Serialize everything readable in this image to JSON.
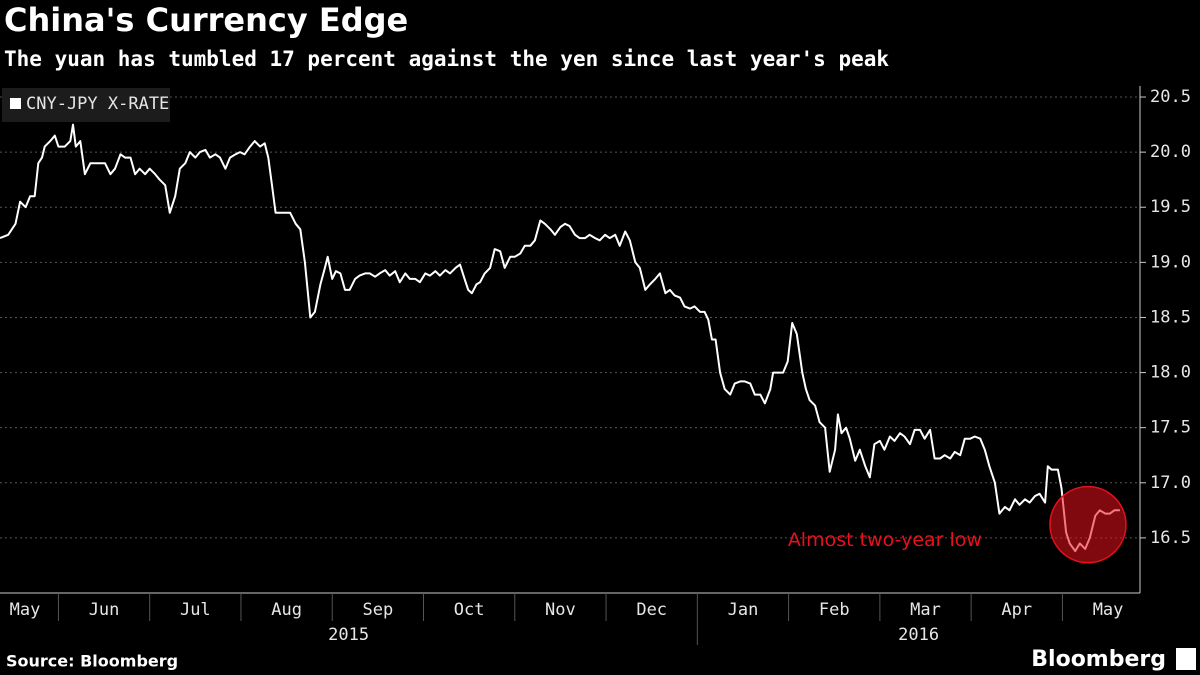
{
  "chart_data": {
    "type": "line",
    "title": "China's Currency Edge",
    "subtitle": "The yuan has tumbled 17 percent against the yen since last year's peak",
    "source": "Source: Bloomberg",
    "brand": "Bloomberg",
    "x": [
      0.36,
      0.45,
      0.53,
      0.58,
      0.64,
      0.69,
      0.74,
      0.78,
      0.82,
      0.85,
      0.91,
      0.96,
      1.0,
      1.07,
      1.13,
      1.16,
      1.19,
      1.24,
      1.29,
      1.35,
      1.46,
      1.51,
      1.57,
      1.62,
      1.68,
      1.73,
      1.79,
      1.84,
      1.89,
      1.95,
      2.0,
      2.06,
      2.11,
      2.17,
      2.22,
      2.28,
      2.33,
      2.39,
      2.44,
      2.5,
      2.55,
      2.61,
      2.66,
      2.72,
      2.77,
      2.83,
      2.88,
      2.94,
      2.99,
      3.04,
      3.1,
      3.15,
      3.21,
      3.26,
      3.3,
      3.34,
      3.38,
      3.46,
      3.54,
      3.6,
      3.65,
      3.7,
      3.76,
      3.81,
      3.87,
      3.92,
      3.95,
      4.0,
      4.04,
      4.09,
      4.14,
      4.19,
      4.25,
      4.3,
      4.36,
      4.41,
      4.47,
      4.52,
      4.58,
      4.63,
      4.69,
      4.74,
      4.8,
      4.85,
      4.91,
      4.96,
      5.02,
      5.07,
      5.13,
      5.18,
      5.24,
      5.29,
      5.35,
      5.4,
      5.45,
      5.49,
      5.53,
      5.58,
      5.62,
      5.67,
      5.73,
      5.78,
      5.84,
      5.89,
      5.95,
      6.0,
      6.06,
      6.11,
      6.17,
      6.22,
      6.28,
      6.33,
      6.39,
      6.44,
      6.5,
      6.55,
      6.6,
      6.66,
      6.71,
      6.77,
      6.82,
      6.88,
      6.93,
      6.99,
      7.04,
      7.1,
      7.15,
      7.21,
      7.26,
      7.32,
      7.37,
      7.43,
      7.48,
      7.54,
      7.59,
      7.65,
      7.7,
      7.75,
      7.81,
      7.86,
      7.92,
      7.97,
      8.03,
      8.08,
      8.12,
      8.16,
      8.2,
      8.25,
      8.3,
      8.36,
      8.41,
      8.47,
      8.52,
      8.58,
      8.63,
      8.69,
      8.74,
      8.8,
      8.83,
      8.88,
      8.94,
      8.99,
      9.04,
      9.09,
      9.15,
      9.19,
      9.23,
      9.29,
      9.34,
      9.4,
      9.45,
      9.51,
      9.54,
      9.58,
      9.63,
      9.67,
      9.73,
      9.78,
      9.84,
      9.89,
      9.94,
      10.0,
      10.05,
      10.11,
      10.16,
      10.22,
      10.27,
      10.33,
      10.38,
      10.44,
      10.49,
      10.55,
      10.6,
      10.66,
      10.71,
      10.77,
      10.82,
      10.88,
      10.93,
      10.99,
      11.04,
      11.1,
      11.15,
      11.2,
      11.26,
      11.31,
      11.37,
      11.42,
      11.48,
      11.53,
      11.59,
      11.64,
      11.7,
      11.75,
      11.81,
      11.84,
      11.88,
      11.95,
      11.99,
      12.04,
      12.08,
      12.14,
      12.19,
      12.25,
      12.3,
      12.36,
      12.41,
      12.47,
      12.52,
      12.57,
      12.63
    ],
    "series": [
      {
        "name": "CNY-JPY X-RATE",
        "color": "#ffffff",
        "values": [
          19.22,
          19.25,
          19.35,
          19.55,
          19.5,
          19.6,
          19.6,
          19.9,
          19.95,
          20.05,
          20.1,
          20.15,
          20.05,
          20.05,
          20.1,
          20.25,
          20.05,
          20.1,
          19.8,
          19.9,
          19.9,
          19.9,
          19.8,
          19.85,
          19.98,
          19.95,
          19.95,
          19.8,
          19.85,
          19.8,
          19.85,
          19.8,
          19.75,
          19.7,
          19.45,
          19.6,
          19.85,
          19.9,
          20.0,
          19.95,
          20.0,
          20.02,
          19.95,
          19.98,
          19.95,
          19.85,
          19.95,
          19.98,
          20.0,
          19.98,
          20.05,
          20.1,
          20.05,
          20.08,
          19.95,
          19.7,
          19.45,
          19.45,
          19.45,
          19.35,
          19.3,
          19.0,
          18.5,
          18.55,
          18.8,
          18.95,
          19.05,
          18.85,
          18.92,
          18.9,
          18.75,
          18.75,
          18.85,
          18.88,
          18.9,
          18.9,
          18.87,
          18.9,
          18.93,
          18.88,
          18.92,
          18.82,
          18.9,
          18.85,
          18.85,
          18.82,
          18.9,
          18.88,
          18.92,
          18.88,
          18.93,
          18.9,
          18.95,
          18.98,
          18.85,
          18.75,
          18.72,
          18.8,
          18.82,
          18.9,
          18.95,
          19.12,
          19.1,
          18.95,
          19.05,
          19.05,
          19.08,
          19.15,
          19.15,
          19.2,
          19.38,
          19.35,
          19.3,
          19.25,
          19.32,
          19.35,
          19.33,
          19.25,
          19.22,
          19.22,
          19.25,
          19.22,
          19.2,
          19.25,
          19.22,
          19.25,
          19.15,
          19.28,
          19.2,
          19.0,
          18.95,
          18.75,
          18.8,
          18.85,
          18.9,
          18.72,
          18.75,
          18.7,
          18.68,
          18.6,
          18.58,
          18.6,
          18.55,
          18.55,
          18.48,
          18.3,
          18.3,
          18.0,
          17.85,
          17.8,
          17.9,
          17.92,
          17.92,
          17.9,
          17.8,
          17.8,
          17.72,
          17.85,
          18.0,
          18.0,
          18.0,
          18.1,
          18.45,
          18.35,
          18.0,
          17.85,
          17.75,
          17.7,
          17.55,
          17.5,
          17.1,
          17.3,
          17.62,
          17.45,
          17.5,
          17.4,
          17.2,
          17.3,
          17.15,
          17.05,
          17.35,
          17.38,
          17.3,
          17.42,
          17.38,
          17.45,
          17.42,
          17.35,
          17.48,
          17.48,
          17.4,
          17.48,
          17.22,
          17.22,
          17.25,
          17.22,
          17.28,
          17.25,
          17.4,
          17.4,
          17.42,
          17.4,
          17.3,
          17.15,
          17.0,
          16.72,
          16.78,
          16.75,
          16.85,
          16.8,
          16.85,
          16.82,
          16.88,
          16.9,
          16.82,
          17.15,
          17.12,
          17.12,
          16.95,
          16.55,
          16.45,
          16.38,
          16.45,
          16.4,
          16.5,
          16.7,
          16.75,
          16.72,
          16.72,
          16.75,
          16.75
        ]
      }
    ],
    "xlim": [
      0.36,
      12.85
    ],
    "xticks": [
      {
        "value": 0.5,
        "label": "May"
      },
      {
        "value": 1.5,
        "label": "Jun"
      },
      {
        "value": 2.5,
        "label": "Jul"
      },
      {
        "value": 3.5,
        "label": "Aug"
      },
      {
        "value": 4.5,
        "label": "Sep"
      },
      {
        "value": 5.5,
        "label": "Oct"
      },
      {
        "value": 6.5,
        "label": "Nov"
      },
      {
        "value": 7.5,
        "label": "Dec"
      },
      {
        "value": 8.5,
        "label": "Jan"
      },
      {
        "value": 9.5,
        "label": "Feb"
      },
      {
        "value": 10.5,
        "label": "Mar"
      },
      {
        "value": 11.5,
        "label": "Apr"
      },
      {
        "value": 12.5,
        "label": "May"
      }
    ],
    "x_groups": [
      {
        "label": "2015",
        "start": 0.36,
        "end": 8
      },
      {
        "label": "2016",
        "start": 8,
        "end": 12.85
      }
    ],
    "ylim": [
      16.0,
      20.6
    ],
    "yticks": [
      16.5,
      {
        "value": 17,
        "label": "17.0"
      },
      17.5,
      {
        "value": 18,
        "label": "18.0"
      },
      18.5,
      {
        "value": 19,
        "label": "19.0"
      },
      19.5,
      {
        "value": 20,
        "label": "20.0"
      },
      20.5
    ],
    "grid": true,
    "legend": "top-left",
    "annotation": {
      "text": "Almost two-year low",
      "x": 12.28,
      "y": 16.62,
      "color": "#e8101c"
    }
  }
}
